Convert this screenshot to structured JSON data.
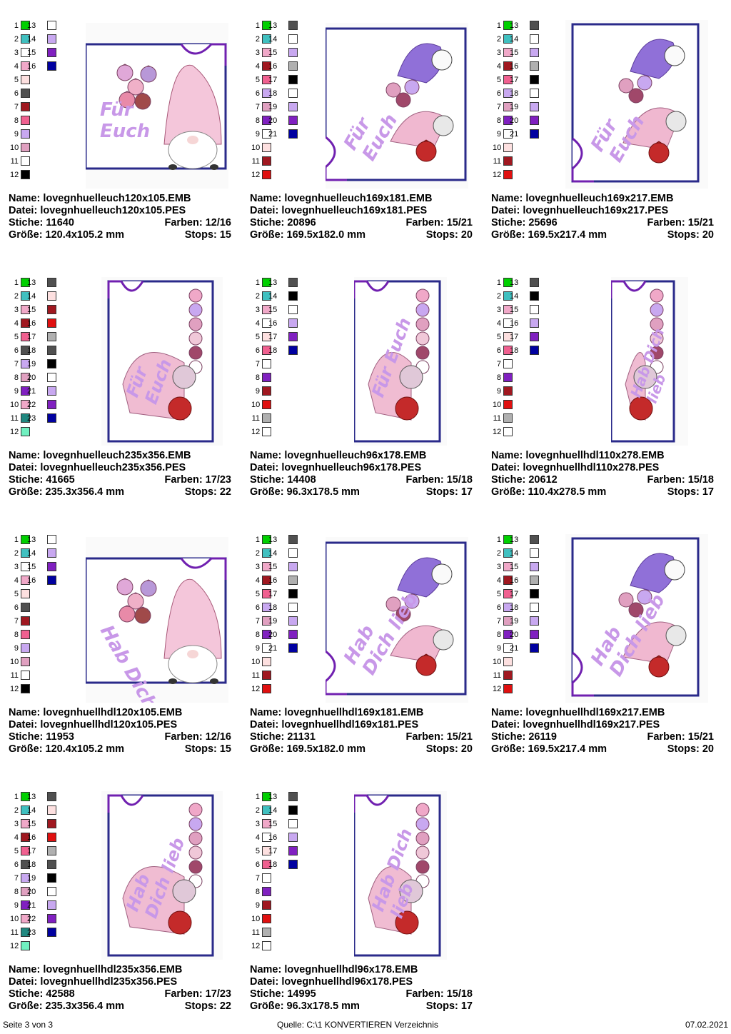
{
  "labels": {
    "name": "Name:",
    "datei": "Datei:",
    "stiche": "Stiche:",
    "farben": "Farben:",
    "groesse": "Größe:",
    "stops": "Stops:"
  },
  "designs": [
    {
      "name": "lovegnhuelleuch120x105.EMB",
      "datei": "lovegnhuelleuch120x105.PES",
      "stiche": "11640",
      "farben": "12/16",
      "groesse": "120.4x105.2 mm",
      "stops": "15",
      "text_lines": [
        "Für",
        "Euch"
      ],
      "colors": [
        "#00d000",
        "#40c0c0",
        "#ffffff",
        "#f0a8c8",
        "#fde0e0",
        "#505050",
        "#a01820",
        "#f06090",
        "#c8a8f0",
        "#e0a0c0",
        "#ffffff",
        "#000000",
        "#ffffff",
        "#c8a8f0",
        "#8020c0",
        "#0000a0"
      ]
    },
    {
      "name": "lovegnhuelleuch169x181.EMB",
      "datei": "lovegnhuelleuch169x181.PES",
      "stiche": "20896",
      "farben": "15/21",
      "groesse": "169.5x182.0 mm",
      "stops": "20",
      "text_lines": [
        "Für",
        "Euch"
      ],
      "colors": [
        "#00d000",
        "#40c0c0",
        "#f0a8c8",
        "#a01820",
        "#f06090",
        "#c8a8f0",
        "#e0a0c0",
        "#8020c0",
        "#ffffff",
        "#fde0e0",
        "#a01820",
        "#e01010",
        "#505050",
        "#ffffff",
        "#c8a8f0",
        "#b0b0b0",
        "#000000",
        "#ffffff",
        "#c8a8f0",
        "#8020c0",
        "#0000a0"
      ]
    },
    {
      "name": "lovegnhuelleuch169x217.EMB",
      "datei": "lovegnhuelleuch169x217.PES",
      "stiche": "25696",
      "farben": "15/21",
      "groesse": "169.5x217.4 mm",
      "stops": "20",
      "text_lines": [
        "Für",
        "Euch"
      ],
      "colors": [
        "#00d000",
        "#40c0c0",
        "#f0a8c8",
        "#a01820",
        "#f06090",
        "#c8a8f0",
        "#e0a0c0",
        "#8020c0",
        "#ffffff",
        "#fde0e0",
        "#a01820",
        "#e01010",
        "#505050",
        "#ffffff",
        "#c8a8f0",
        "#b0b0b0",
        "#000000",
        "#ffffff",
        "#c8a8f0",
        "#8020c0",
        "#0000a0"
      ]
    },
    {
      "name": "lovegnhuelleuch235x356.EMB",
      "datei": "lovegnhuelleuch235x356.PES",
      "stiche": "41665",
      "farben": "17/23",
      "groesse": "235.3x356.4 mm",
      "stops": "22",
      "text_lines": [
        "Für",
        "Euch"
      ],
      "colors": [
        "#00d000",
        "#40c0c0",
        "#f0a8c8",
        "#a01820",
        "#f06090",
        "#505050",
        "#c8a8f0",
        "#e0a0c0",
        "#8020c0",
        "#f0a8c8",
        "#208880",
        "#70f0c0",
        "#505050",
        "#fde0e0",
        "#a01820",
        "#e01010",
        "#b0b0b0",
        "#505050",
        "#000000",
        "#ffffff",
        "#c8a8f0",
        "#8020c0",
        "#0000a0"
      ]
    },
    {
      "name": "lovegnhuelleuch96x178.EMB",
      "datei": "lovegnhuelleuch96x178.PES",
      "stiche": "14408",
      "farben": "15/18",
      "groesse": "96.3x178.5 mm",
      "stops": "17",
      "text_lines": [
        "Für Euch"
      ],
      "colors": [
        "#00d000",
        "#40c0c0",
        "#f0a8c8",
        "#ffffff",
        "#fde0e0",
        "#f06090",
        "#ffffff",
        "#8020c0",
        "#a01820",
        "#e01010",
        "#b0b0b0",
        "#ffffff",
        "#505050",
        "#000000",
        "#ffffff",
        "#c8a8f0",
        "#8020c0",
        "#0000a0"
      ]
    },
    {
      "name": "lovegnhuellhdl110x278.EMB",
      "datei": "lovegnhuellhdl110x278.PES",
      "stiche": "20612",
      "farben": "15/18",
      "groesse": "110.4x278.5 mm",
      "stops": "17",
      "text_lines": [
        "Hab Dich",
        "lieb"
      ],
      "colors": [
        "#00d000",
        "#40c0c0",
        "#f0a8c8",
        "#ffffff",
        "#fde0e0",
        "#f06090",
        "#ffffff",
        "#8020c0",
        "#a01820",
        "#e01010",
        "#b0b0b0",
        "#ffffff",
        "#505050",
        "#000000",
        "#ffffff",
        "#c8a8f0",
        "#8020c0",
        "#0000a0"
      ]
    },
    {
      "name": "lovegnhuellhdl120x105.EMB",
      "datei": "lovegnhuellhdl120x105.PES",
      "stiche": "11953",
      "farben": "12/16",
      "groesse": "120.4x105.2 mm",
      "stops": "15",
      "text_lines": [
        "Hab Dich lieb"
      ],
      "colors": [
        "#00d000",
        "#40c0c0",
        "#ffffff",
        "#f0a8c8",
        "#fde0e0",
        "#505050",
        "#a01820",
        "#f06090",
        "#c8a8f0",
        "#e0a0c0",
        "#ffffff",
        "#000000",
        "#ffffff",
        "#c8a8f0",
        "#8020c0",
        "#0000a0"
      ]
    },
    {
      "name": "lovegnhuellhdl169x181.EMB",
      "datei": "lovegnhuellhdl169x181.PES",
      "stiche": "21131",
      "farben": "15/21",
      "groesse": "169.5x182.0 mm",
      "stops": "20",
      "text_lines": [
        "Hab",
        "Dich lieb"
      ],
      "colors": [
        "#00d000",
        "#40c0c0",
        "#f0a8c8",
        "#a01820",
        "#f06090",
        "#c8a8f0",
        "#e0a0c0",
        "#8020c0",
        "#ffffff",
        "#fde0e0",
        "#a01820",
        "#e01010",
        "#505050",
        "#ffffff",
        "#c8a8f0",
        "#b0b0b0",
        "#000000",
        "#ffffff",
        "#c8a8f0",
        "#8020c0",
        "#0000a0"
      ]
    },
    {
      "name": "lovegnhuellhdl169x217.EMB",
      "datei": "lovegnhuellhdl169x217.PES",
      "stiche": "26119",
      "farben": "15/21",
      "groesse": "169.5x217.4 mm",
      "stops": "20",
      "text_lines": [
        "Hab",
        "Dich lieb"
      ],
      "colors": [
        "#00d000",
        "#40c0c0",
        "#f0a8c8",
        "#a01820",
        "#f06090",
        "#c8a8f0",
        "#e0a0c0",
        "#8020c0",
        "#ffffff",
        "#fde0e0",
        "#a01820",
        "#e01010",
        "#505050",
        "#ffffff",
        "#c8a8f0",
        "#b0b0b0",
        "#000000",
        "#ffffff",
        "#c8a8f0",
        "#8020c0",
        "#0000a0"
      ]
    },
    {
      "name": "lovegnhuellhdl235x356.EMB",
      "datei": "lovegnhuellhdl235x356.PES",
      "stiche": "42588",
      "farben": "17/23",
      "groesse": "235.3x356.4 mm",
      "stops": "22",
      "text_lines": [
        "Hab",
        "Dich lieb"
      ],
      "colors": [
        "#00d000",
        "#40c0c0",
        "#f0a8c8",
        "#a01820",
        "#f06090",
        "#505050",
        "#c8a8f0",
        "#e0a0c0",
        "#8020c0",
        "#f0a8c8",
        "#208880",
        "#70f0c0",
        "#505050",
        "#fde0e0",
        "#a01820",
        "#e01010",
        "#b0b0b0",
        "#505050",
        "#000000",
        "#ffffff",
        "#c8a8f0",
        "#8020c0",
        "#0000a0"
      ]
    },
    {
      "name": "lovegnhuellhdl96x178.EMB",
      "datei": "lovegnhuellhdl96x178.PES",
      "stiche": "14995",
      "farben": "15/18",
      "groesse": "96.3x178.5 mm",
      "stops": "17",
      "text_lines": [
        "Hab Dich",
        "lieb"
      ],
      "colors": [
        "#00d000",
        "#40c0c0",
        "#f0a8c8",
        "#ffffff",
        "#fde0e0",
        "#f06090",
        "#ffffff",
        "#8020c0",
        "#a01820",
        "#e01010",
        "#b0b0b0",
        "#ffffff",
        "#505050",
        "#000000",
        "#ffffff",
        "#c8a8f0",
        "#8020c0",
        "#0000a0"
      ]
    }
  ],
  "footer": {
    "page": "Seite 3 von 3",
    "source": "Quelle: C:\\1 KONVERTIEREN Verzeichnis",
    "date": "07.02.2021"
  },
  "palette": {
    "frame": "#2a2a8a",
    "notch": "#7020b0",
    "text": "#c898e8"
  }
}
